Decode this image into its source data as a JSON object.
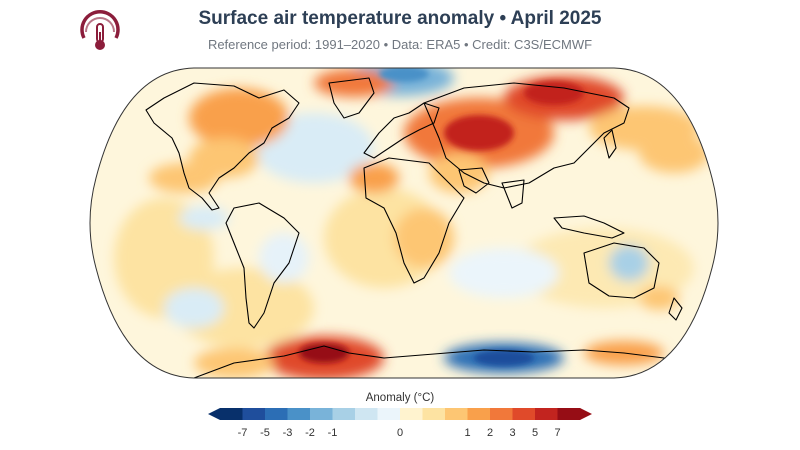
{
  "title": "Surface air temperature anomaly • April 2025",
  "subtitle": "Reference period: 1991–2020 • Data: ERA5 • Credit: C3S/ECMWF",
  "logo_icon": "thermometer-logo-icon",
  "map": {
    "projection": "robinson",
    "variable": "surface air temperature anomaly"
  },
  "legend": {
    "title": "Anomaly (°C)",
    "colors": [
      "#08306b",
      "#1f4e9c",
      "#2c6eb5",
      "#4a91c8",
      "#79b3d9",
      "#a8d0e6",
      "#cfe6f2",
      "#ebf5fb",
      "#fff3cf",
      "#fde3a2",
      "#fdc673",
      "#f9a04b",
      "#f1783a",
      "#e04a2a",
      "#c2241f",
      "#960d15"
    ],
    "ticks": [
      "-7",
      "-5",
      "-3",
      "-2",
      "-1",
      "0",
      "1",
      "2",
      "3",
      "5",
      "7"
    ]
  }
}
